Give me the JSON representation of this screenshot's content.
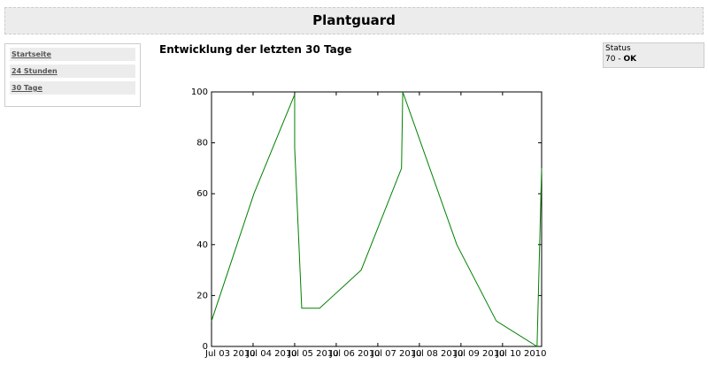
{
  "header": {
    "title": "Plantguard"
  },
  "nav": [
    "Startseite",
    "24 Stunden",
    "30 Tage"
  ],
  "content": {
    "heading": "Entwicklung der letzten 30 Tage"
  },
  "status": {
    "label": "Status",
    "value": "70 -",
    "state": "OK"
  },
  "chart_data": {
    "type": "line",
    "x": [
      0,
      1.02,
      2.0,
      2.0,
      2.17,
      2.6,
      3.6,
      4.57,
      4.6,
      5.9,
      6.85,
      7.83,
      7.94
    ],
    "series": [
      {
        "color": "#008000",
        "values": [
          10,
          60,
          99,
          78,
          15,
          15,
          30,
          70,
          100,
          40,
          10,
          0,
          70
        ]
      }
    ],
    "xlim": [
      0,
      7.94
    ],
    "xticks": [
      {
        "value": 0,
        "label": "Jul 03 2010"
      },
      {
        "value": 1,
        "label": "Jul 04 2010"
      },
      {
        "value": 2,
        "label": "Jul 05 2010"
      },
      {
        "value": 3,
        "label": "Jul 06 2010"
      },
      {
        "value": 4,
        "label": "Jul 07 2010"
      },
      {
        "value": 5,
        "label": "Jul 08 2010"
      },
      {
        "value": 6,
        "label": "Jul 09 2010"
      },
      {
        "value": 7,
        "label": "Jul 10 2010"
      }
    ],
    "ylim": [
      0,
      100
    ],
    "yticks": [
      0,
      20,
      40,
      60,
      80,
      100
    ],
    "grid": false
  }
}
